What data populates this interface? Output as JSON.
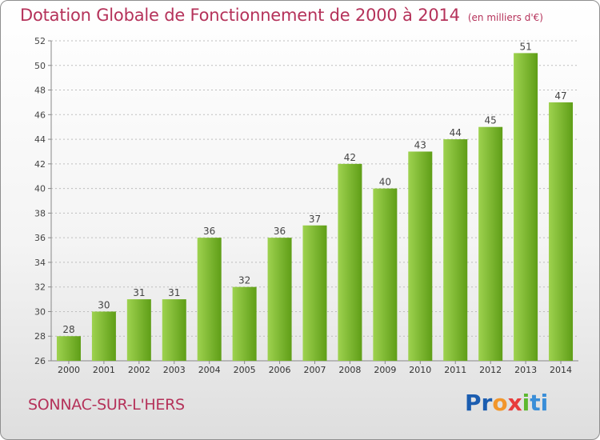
{
  "chart_data": {
    "type": "bar",
    "title": "Dotation Globale de Fonctionnement de 2000 à 2014",
    "subtitle": "(en milliers d'€)",
    "categories": [
      "2000",
      "2001",
      "2002",
      "2003",
      "2004",
      "2005",
      "2006",
      "2007",
      "2008",
      "2009",
      "2010",
      "2011",
      "2012",
      "2013",
      "2014"
    ],
    "values": [
      28,
      30,
      31,
      31,
      36,
      32,
      36,
      37,
      42,
      40,
      43,
      44,
      45,
      51,
      47
    ],
    "xlabel": "",
    "ylabel": "",
    "ylim": [
      26,
      52
    ],
    "yticks": [
      26,
      28,
      30,
      32,
      34,
      36,
      38,
      40,
      42,
      44,
      46,
      48,
      50,
      52
    ],
    "grid": "horizontal dashed",
    "bar_color": "#7fbf3b"
  },
  "footer": {
    "city": "SONNAC-SUR-L'HERS",
    "brand_parts": [
      "Pr",
      "o",
      "x",
      "i",
      "ti"
    ]
  },
  "colors": {
    "title": "#b5325a",
    "bar_light": "#9ed24f",
    "bar_dark": "#62a318"
  }
}
